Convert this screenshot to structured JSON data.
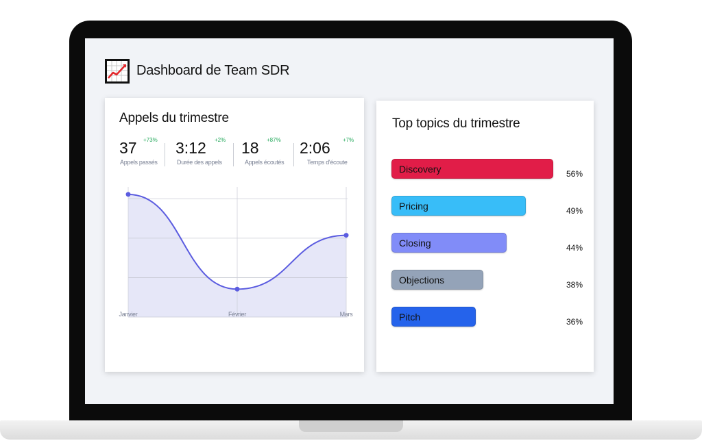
{
  "app": {
    "title": "Dashboard de Team SDR",
    "icon": "line-chart-icon"
  },
  "calls_card": {
    "title": "Appels du trimestre",
    "kpis": [
      {
        "value": "37",
        "label": "Appels passés",
        "delta": "+73%"
      },
      {
        "value": "3:12",
        "label": "Durée des appels",
        "delta": "+2%"
      },
      {
        "value": "18",
        "label": "Appels écoutés",
        "delta": "+87%"
      },
      {
        "value": "2:06",
        "label": "Temps d'écoute",
        "delta": "+7%"
      }
    ],
    "chart_data": {
      "type": "area",
      "categories": [
        "Janvier",
        "Février",
        "Mars"
      ],
      "series": [
        {
          "values": [
            3.3,
            0.75,
            2.2
          ]
        }
      ],
      "ylim": [
        0,
        3.5
      ],
      "grid": true,
      "color": "#5b5ce0",
      "fill": "#e6e7f8"
    }
  },
  "topics_card": {
    "title": "Top topics du trimestre",
    "chart_data": {
      "type": "bar",
      "orientation": "horizontal",
      "categories": [
        "Discovery",
        "Pricing",
        "Closing",
        "Objections",
        "Pitch"
      ],
      "values": [
        56,
        49,
        44,
        38,
        36
      ],
      "labels": [
        "56%",
        "49%",
        "44%",
        "38%",
        "36%"
      ],
      "colors": [
        "#e11d48",
        "#38bdf8",
        "#818cf8",
        "#94a3b8",
        "#2563eb"
      ]
    }
  }
}
